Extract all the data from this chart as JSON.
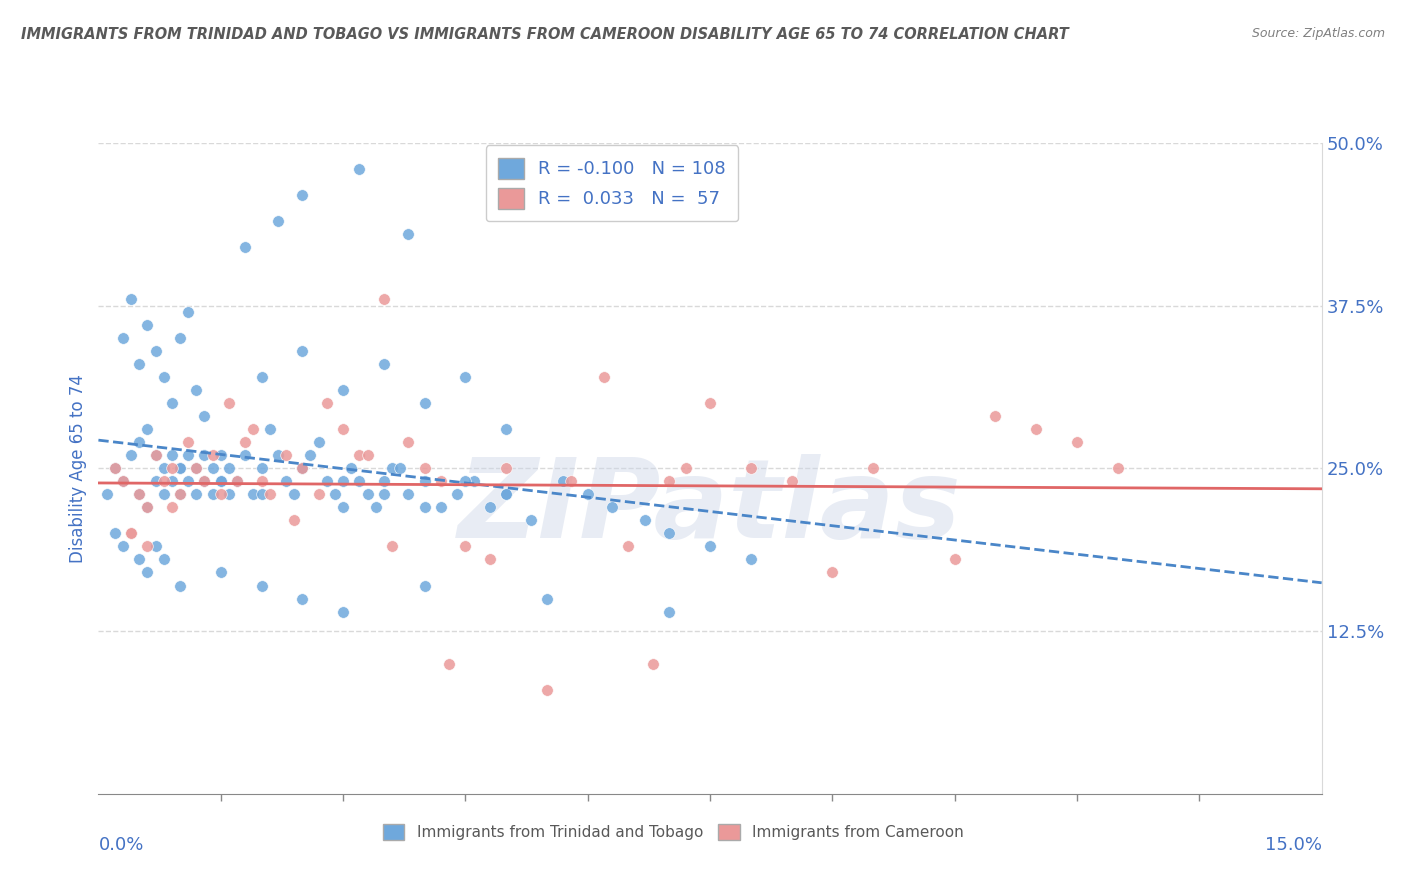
{
  "title": "IMMIGRANTS FROM TRINIDAD AND TOBAGO VS IMMIGRANTS FROM CAMEROON DISABILITY AGE 65 TO 74 CORRELATION CHART",
  "source": "Source: ZipAtlas.com",
  "ylabel": "Disability Age 65 to 74",
  "xlim": [
    0.0,
    15.0
  ],
  "ylim": [
    0.0,
    50.0
  ],
  "yticks": [
    12.5,
    25.0,
    37.5,
    50.0
  ],
  "watermark": "ZIPatlas",
  "legend_R1": "-0.100",
  "legend_N1": "108",
  "legend_R2": "0.033",
  "legend_N2": "57",
  "blue_color": "#6fa8dc",
  "pink_color": "#ea9999",
  "trend_blue": "#4a86c8",
  "trend_pink": "#e06666",
  "title_color": "#595959",
  "source_color": "#808080",
  "axis_label_color": "#4472c4",
  "grid_color": "#d9d9d9",
  "trinidad_x": [
    0.1,
    0.2,
    0.3,
    0.4,
    0.5,
    0.5,
    0.6,
    0.6,
    0.7,
    0.7,
    0.8,
    0.8,
    0.9,
    0.9,
    1.0,
    1.0,
    1.1,
    1.1,
    1.2,
    1.2,
    1.3,
    1.3,
    1.4,
    1.4,
    1.5,
    1.5,
    1.6,
    1.6,
    1.7,
    1.8,
    1.9,
    2.0,
    2.1,
    2.2,
    2.3,
    2.4,
    2.5,
    2.6,
    2.7,
    2.8,
    2.9,
    3.0,
    3.1,
    3.2,
    3.3,
    3.4,
    3.5,
    3.6,
    3.7,
    3.8,
    4.0,
    4.2,
    4.4,
    4.6,
    4.8,
    5.0,
    5.3,
    5.7,
    6.0,
    6.3,
    6.7,
    7.0,
    7.5,
    8.0,
    0.3,
    0.4,
    0.5,
    0.6,
    0.7,
    0.8,
    0.9,
    1.0,
    1.1,
    1.2,
    1.3,
    2.0,
    2.5,
    3.0,
    3.5,
    4.0,
    4.5,
    5.0,
    0.2,
    0.3,
    0.5,
    0.6,
    0.7,
    0.8,
    1.0,
    1.5,
    2.0,
    2.5,
    3.0,
    4.0,
    5.5,
    7.0,
    1.8,
    2.2,
    2.5,
    3.2,
    3.8,
    1.0,
    1.5,
    2.0,
    2.5,
    3.0,
    3.5,
    4.0,
    4.5,
    5.0
  ],
  "trinidad_y": [
    23.0,
    25.0,
    24.0,
    26.0,
    23.0,
    27.0,
    22.0,
    28.0,
    24.0,
    26.0,
    23.0,
    25.0,
    24.0,
    26.0,
    23.0,
    25.0,
    24.0,
    26.0,
    23.0,
    25.0,
    24.0,
    26.0,
    23.0,
    25.0,
    24.0,
    26.0,
    23.0,
    25.0,
    24.0,
    26.0,
    23.0,
    25.0,
    28.0,
    26.0,
    24.0,
    23.0,
    25.0,
    26.0,
    27.0,
    24.0,
    23.0,
    22.0,
    25.0,
    24.0,
    23.0,
    22.0,
    24.0,
    25.0,
    25.0,
    23.0,
    24.0,
    22.0,
    23.0,
    24.0,
    22.0,
    23.0,
    21.0,
    24.0,
    23.0,
    22.0,
    21.0,
    20.0,
    19.0,
    18.0,
    35.0,
    38.0,
    33.0,
    36.0,
    34.0,
    32.0,
    30.0,
    35.0,
    37.0,
    31.0,
    29.0,
    32.0,
    34.0,
    31.0,
    33.0,
    30.0,
    32.0,
    28.0,
    20.0,
    19.0,
    18.0,
    17.0,
    19.0,
    18.0,
    16.0,
    17.0,
    16.0,
    15.0,
    14.0,
    16.0,
    15.0,
    14.0,
    42.0,
    44.0,
    46.0,
    48.0,
    43.0,
    25.0,
    24.0,
    23.0,
    25.0,
    24.0,
    23.0,
    22.0,
    24.0,
    23.0
  ],
  "cameroon_x": [
    0.2,
    0.3,
    0.4,
    0.5,
    0.6,
    0.7,
    0.8,
    0.9,
    1.0,
    1.1,
    1.2,
    1.4,
    1.5,
    1.6,
    1.7,
    1.8,
    2.0,
    2.1,
    2.3,
    2.5,
    2.7,
    2.8,
    3.0,
    3.2,
    3.5,
    3.6,
    3.8,
    4.0,
    4.2,
    4.3,
    4.5,
    4.8,
    5.0,
    5.5,
    5.8,
    6.5,
    6.8,
    7.0,
    7.5,
    8.0,
    8.5,
    9.0,
    9.5,
    10.5,
    11.0,
    11.5,
    12.0,
    12.5,
    0.4,
    0.6,
    0.9,
    1.3,
    1.9,
    2.4,
    3.3,
    6.2,
    7.2
  ],
  "cameroon_y": [
    25.0,
    24.0,
    20.0,
    23.0,
    22.0,
    26.0,
    24.0,
    25.0,
    23.0,
    27.0,
    25.0,
    26.0,
    23.0,
    30.0,
    24.0,
    27.0,
    24.0,
    23.0,
    26.0,
    25.0,
    23.0,
    30.0,
    28.0,
    26.0,
    38.0,
    19.0,
    27.0,
    25.0,
    24.0,
    10.0,
    19.0,
    18.0,
    25.0,
    8.0,
    24.0,
    19.0,
    10.0,
    24.0,
    30.0,
    25.0,
    24.0,
    17.0,
    25.0,
    18.0,
    29.0,
    28.0,
    27.0,
    25.0,
    20.0,
    19.0,
    22.0,
    24.0,
    28.0,
    21.0,
    26.0,
    32.0,
    25.0
  ]
}
